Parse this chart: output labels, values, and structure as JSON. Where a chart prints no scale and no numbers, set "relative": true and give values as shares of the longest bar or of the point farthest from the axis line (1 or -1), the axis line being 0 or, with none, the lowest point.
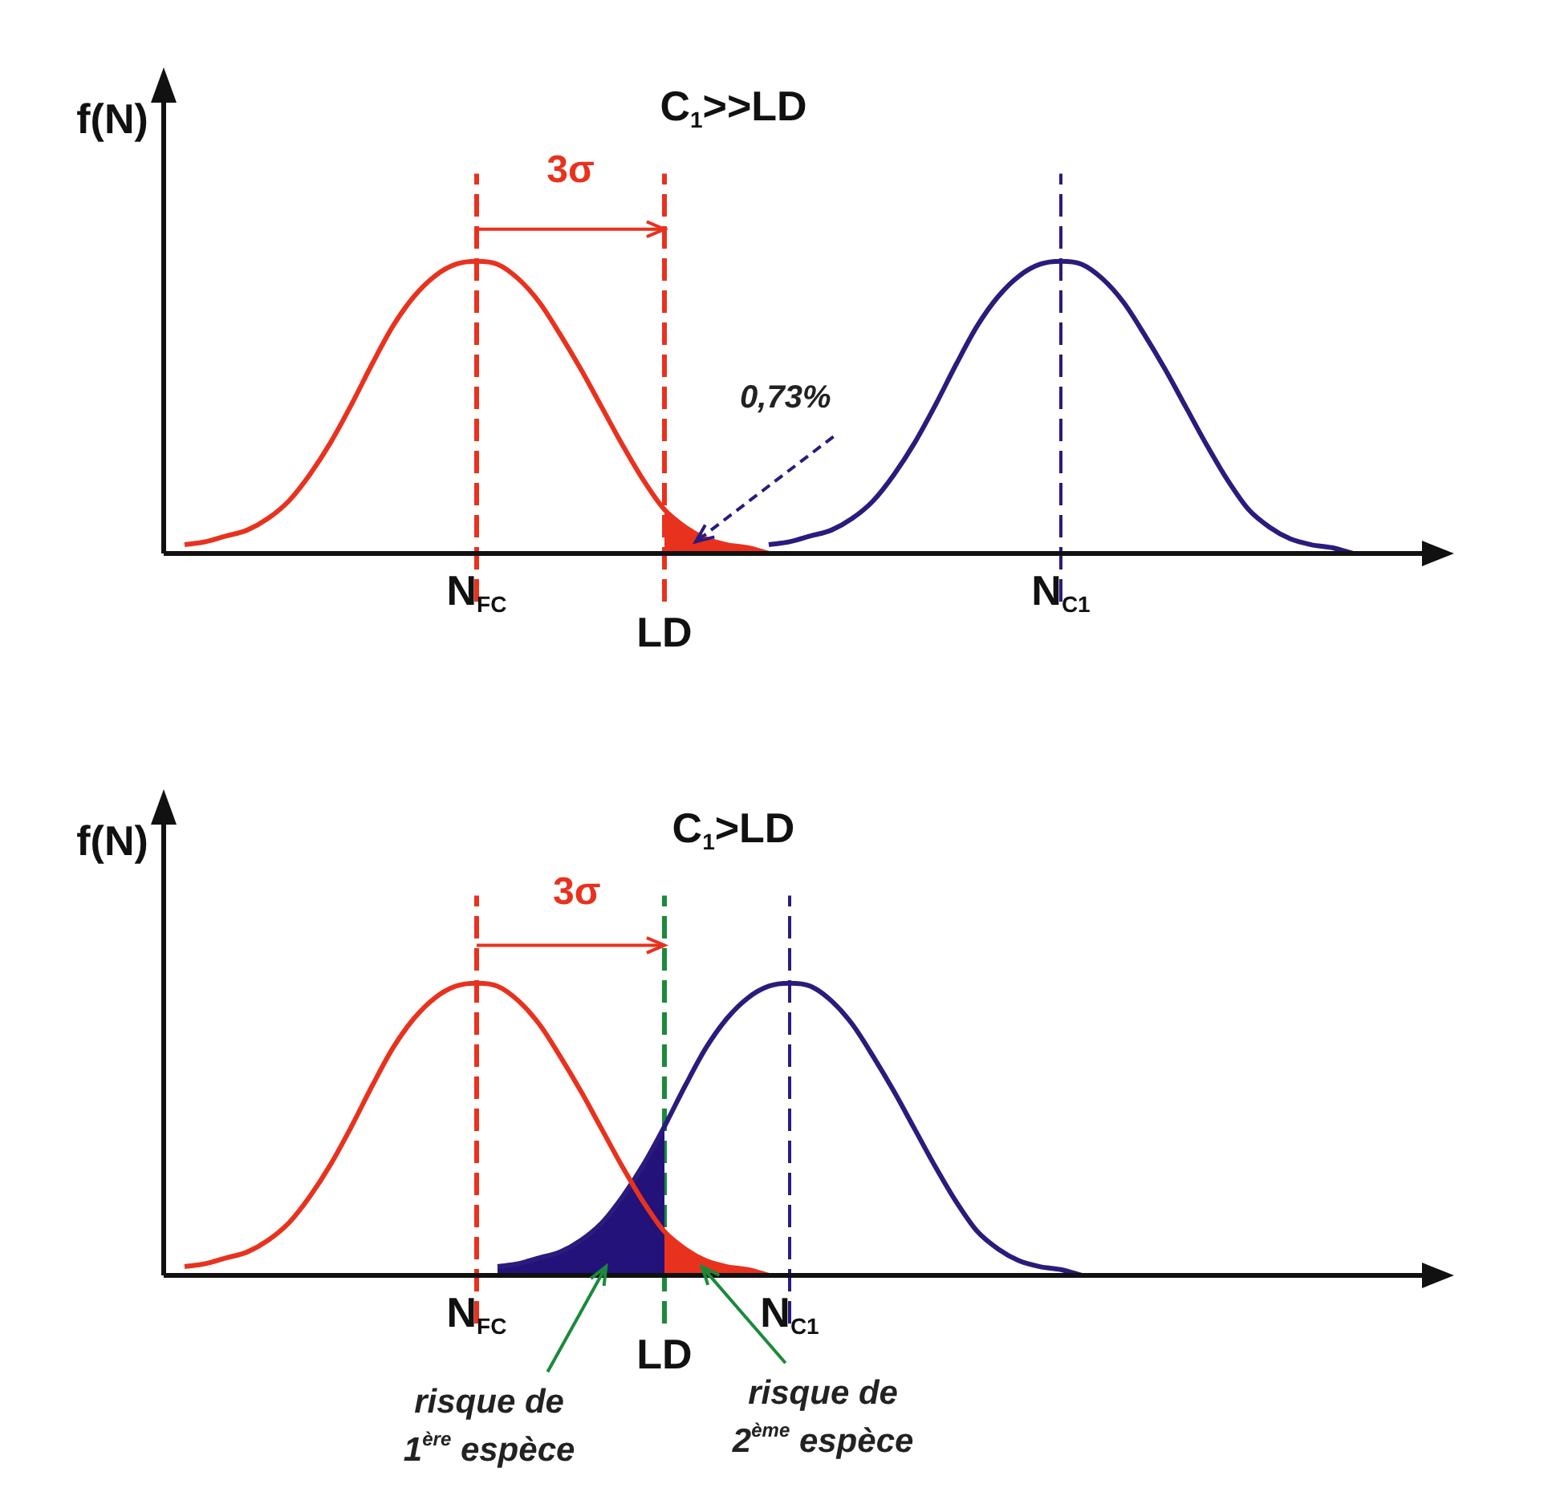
{
  "chart_data": [
    {
      "type": "line",
      "title": "C$_{1}$>>LD",
      "ylabel": "f(N)",
      "relative": true,
      "marker": "none",
      "categories": [
        null,
        null,
        null,
        null,
        null,
        null,
        null,
        null,
        null,
        null,
        null,
        null,
        null,
        null,
        null,
        "N$_{FC}$",
        null,
        null,
        null,
        null,
        null,
        null,
        null,
        null,
        "LD",
        null,
        null,
        null,
        null,
        null,
        null,
        null,
        null,
        null,
        null,
        null,
        null,
        null,
        null,
        null,
        null,
        null,
        null,
        "N$_{C1}$",
        null,
        null,
        null,
        null,
        null,
        null,
        null,
        null,
        null,
        null,
        null,
        null,
        null,
        null,
        null,
        null,
        null
      ],
      "series": [
        {
          "type": "line",
          "color": "#e8321e",
          "values": [
            null,
            0.03,
            0.04,
            0.06,
            0.08,
            0.12,
            0.18,
            0.27,
            0.38,
            0.51,
            0.65,
            0.78,
            0.88,
            0.95,
            0.99,
            1,
            0.99,
            0.94,
            0.86,
            0.75,
            0.63,
            0.5,
            0.37,
            0.25,
            0.15,
            0.09,
            0.05,
            0.03,
            0.02,
            0,
            null,
            null,
            null,
            null,
            null,
            null,
            null,
            null,
            null,
            null,
            null,
            null,
            null,
            null,
            null,
            null,
            null,
            null,
            null,
            null,
            null,
            null,
            null,
            null,
            null,
            null,
            null,
            null,
            null,
            null,
            null
          ]
        },
        {
          "type": "area",
          "color": "#e8321e",
          "values": [
            null,
            null,
            null,
            null,
            null,
            null,
            null,
            null,
            null,
            null,
            null,
            null,
            null,
            null,
            null,
            null,
            null,
            null,
            null,
            null,
            null,
            null,
            null,
            null,
            0.15,
            0.09,
            0.05,
            0.03,
            0.02,
            0,
            null,
            null,
            null,
            null,
            null,
            null,
            null,
            null,
            null,
            null,
            null,
            null,
            null,
            null,
            null,
            null,
            null,
            null,
            null,
            null,
            null,
            null,
            null,
            null,
            null,
            null,
            null,
            null,
            null,
            null,
            null
          ]
        },
        {
          "type": "line",
          "color": "#2b1b7c",
          "values": [
            null,
            null,
            null,
            null,
            null,
            null,
            null,
            null,
            null,
            null,
            null,
            null,
            null,
            null,
            null,
            null,
            null,
            null,
            null,
            null,
            null,
            null,
            null,
            null,
            null,
            null,
            null,
            null,
            null,
            0.03,
            0.04,
            0.06,
            0.08,
            0.12,
            0.18,
            0.27,
            0.38,
            0.51,
            0.65,
            0.78,
            0.88,
            0.95,
            0.99,
            1,
            0.99,
            0.94,
            0.86,
            0.75,
            0.63,
            0.5,
            0.37,
            0.25,
            0.15,
            0.09,
            0.05,
            0.03,
            0.02,
            0,
            null,
            null,
            null
          ]
        }
      ],
      "ref_lines": [
        {
          "axis": "x",
          "value": "N$_{FC}$",
          "color": "#e8321e",
          "line_style": "dashed"
        },
        {
          "axis": "x",
          "value": "LD",
          "color": "#e8321e",
          "line_style": "dashed"
        },
        {
          "axis": "x",
          "value": "N$_{C1}$",
          "color": "#2b1b7c",
          "line_style": "dashed"
        }
      ],
      "annotations": [
        "3σ",
        "0,73%"
      ]
    },
    {
      "type": "line",
      "title": "C$_{1}$>LD",
      "ylabel": "f(N)",
      "relative": true,
      "marker": "none",
      "categories": [
        null,
        null,
        null,
        null,
        null,
        null,
        null,
        null,
        null,
        null,
        null,
        null,
        null,
        null,
        null,
        "N$_{FC}$",
        null,
        null,
        null,
        null,
        null,
        null,
        null,
        null,
        "LD",
        null,
        null,
        null,
        null,
        null,
        "N$_{C1}$",
        null,
        null,
        null,
        null,
        null,
        null,
        null,
        null,
        null,
        null,
        null,
        null,
        null,
        null,
        null,
        null,
        null,
        null,
        null,
        null,
        null,
        null,
        null,
        null,
        null,
        null,
        null,
        null,
        null,
        null
      ],
      "series": [
        {
          "type": "area",
          "color": "#22127a",
          "values": [
            null,
            null,
            null,
            null,
            null,
            null,
            null,
            null,
            null,
            null,
            null,
            null,
            null,
            null,
            null,
            null,
            0.03,
            0.04,
            0.06,
            0.08,
            0.12,
            0.18,
            0.27,
            0.38,
            0.51,
            null,
            null,
            null,
            null,
            null,
            null,
            null,
            null,
            null,
            null,
            null,
            null,
            null,
            null,
            null,
            null,
            null,
            null,
            null,
            null,
            null,
            null,
            null,
            null,
            null,
            null,
            null,
            null,
            null,
            null,
            null,
            null,
            null,
            null,
            null,
            null
          ]
        },
        {
          "type": "area",
          "color": "#e8321e",
          "values": [
            null,
            null,
            null,
            null,
            null,
            null,
            null,
            null,
            null,
            null,
            null,
            null,
            null,
            null,
            null,
            null,
            null,
            null,
            null,
            null,
            null,
            null,
            null,
            null,
            0.15,
            0.09,
            0.05,
            0.03,
            0.02,
            0,
            null,
            null,
            null,
            null,
            null,
            null,
            null,
            null,
            null,
            null,
            null,
            null,
            null,
            null,
            null,
            null,
            null,
            null,
            null,
            null,
            null,
            null,
            null,
            null,
            null,
            null,
            null,
            null,
            null,
            null,
            null
          ]
        },
        {
          "type": "line",
          "color": "#e8321e",
          "values": [
            null,
            0.03,
            0.04,
            0.06,
            0.08,
            0.12,
            0.18,
            0.27,
            0.38,
            0.51,
            0.65,
            0.78,
            0.88,
            0.95,
            0.99,
            1,
            0.99,
            0.94,
            0.86,
            0.75,
            0.63,
            0.5,
            0.37,
            0.25,
            0.15,
            0.09,
            0.05,
            0.03,
            0.02,
            0,
            null,
            null,
            null,
            null,
            null,
            null,
            null,
            null,
            null,
            null,
            null,
            null,
            null,
            null,
            null,
            null,
            null,
            null,
            null,
            null,
            null,
            null,
            null,
            null,
            null,
            null,
            null,
            null,
            null,
            null,
            null
          ]
        },
        {
          "type": "line",
          "color": "#2b1b7c",
          "values": [
            null,
            null,
            null,
            null,
            null,
            null,
            null,
            null,
            null,
            null,
            null,
            null,
            null,
            null,
            null,
            null,
            0.03,
            0.04,
            0.06,
            0.08,
            0.12,
            0.18,
            0.27,
            0.38,
            0.51,
            0.65,
            0.78,
            0.88,
            0.95,
            0.99,
            1,
            0.99,
            0.94,
            0.86,
            0.75,
            0.63,
            0.5,
            0.37,
            0.25,
            0.15,
            0.09,
            0.05,
            0.03,
            0.02,
            0,
            null,
            null,
            null,
            null,
            null,
            null,
            null,
            null,
            null,
            null,
            null,
            null,
            null,
            null,
            null,
            null
          ]
        }
      ],
      "ref_lines": [
        {
          "axis": "x",
          "value": "N$_{FC}$",
          "color": "#e8321e",
          "line_style": "dashed"
        },
        {
          "axis": "x",
          "value": "LD",
          "color": "#1a8a3a",
          "line_style": "dashed"
        },
        {
          "axis": "x",
          "value": "N$_{C1}$",
          "color": "#2b1b7c",
          "line_style": "dashed"
        }
      ],
      "annotations": [
        "3σ",
        "risque de\n1$^{ère}$ espèce",
        "risque de\n2$^{ème}$ espèce"
      ]
    }
  ]
}
